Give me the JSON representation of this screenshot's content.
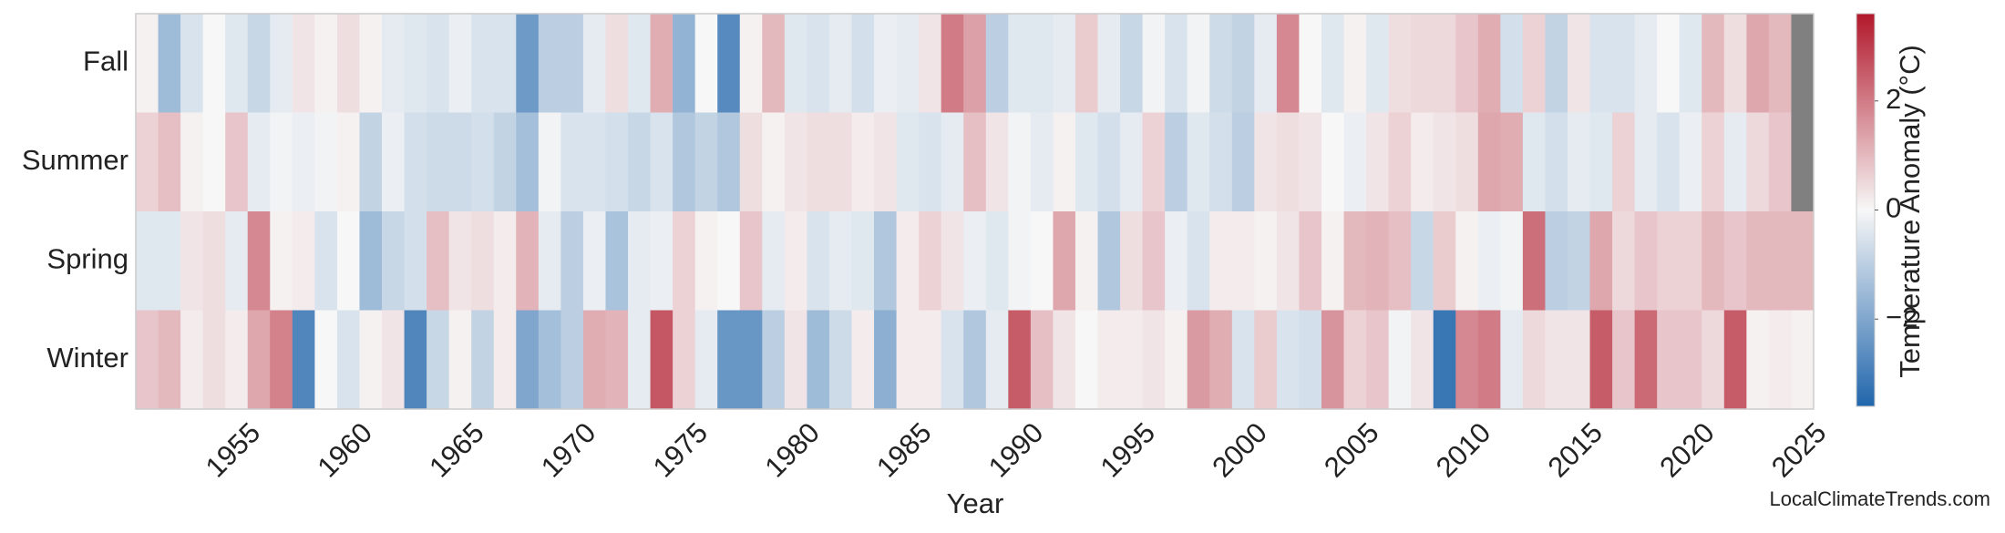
{
  "chart_data": {
    "type": "heatmap",
    "xlabel": "Year",
    "colorbar_label": "Temperature Anomaly (°C)",
    "watermark": "LocalClimateTrends.com",
    "x": [
      1951,
      1952,
      1953,
      1954,
      1955,
      1956,
      1957,
      1958,
      1959,
      1960,
      1961,
      1962,
      1963,
      1964,
      1965,
      1966,
      1967,
      1968,
      1969,
      1970,
      1971,
      1972,
      1973,
      1974,
      1975,
      1976,
      1977,
      1978,
      1979,
      1980,
      1981,
      1982,
      1983,
      1984,
      1985,
      1986,
      1987,
      1988,
      1989,
      1990,
      1991,
      1992,
      1993,
      1994,
      1995,
      1996,
      1997,
      1998,
      1999,
      2000,
      2001,
      2002,
      2003,
      2004,
      2005,
      2006,
      2007,
      2008,
      2009,
      2010,
      2011,
      2012,
      2013,
      2014,
      2015,
      2016,
      2017,
      2018,
      2019,
      2020,
      2021,
      2022,
      2023,
      2024,
      2025
    ],
    "xlim": [
      1950.5,
      2025.5
    ],
    "xticks": [
      1955,
      1960,
      1965,
      1970,
      1975,
      1980,
      1985,
      1990,
      1995,
      2000,
      2005,
      2010,
      2015,
      2020,
      2025
    ],
    "clim": [
      -3.6,
      3.6
    ],
    "cticks": [
      {
        "value": -2,
        "label": "−2"
      },
      0,
      2
    ],
    "cmap": [
      "#2166ac",
      "#f7f7f7",
      "#b2182b"
    ],
    "nan_color": "#808080",
    "series": [
      {
        "name": "Fall",
        "values": [
          0.1,
          -1.5,
          -0.5,
          0,
          -0.4,
          -0.8,
          -0.3,
          0.3,
          0.1,
          0.4,
          0.1,
          -0.3,
          -0.4,
          -0.5,
          -0.2,
          -0.5,
          -0.5,
          -2.3,
          -1.0,
          -1.0,
          -0.3,
          0.4,
          -0.4,
          1.2,
          -1.7,
          0,
          -2.7,
          0.1,
          1.0,
          -0.4,
          -0.5,
          -0.3,
          -0.6,
          -0.2,
          -0.3,
          0.3,
          2.0,
          1.4,
          -1.0,
          -0.4,
          -0.4,
          -0.3,
          0.7,
          -0.3,
          -0.8,
          -0.1,
          -0.5,
          -0.1,
          -0.7,
          -0.9,
          -0.3,
          1.8,
          0,
          -0.4,
          0.1,
          -0.4,
          0.4,
          0.5,
          0.5,
          0.8,
          1.2,
          -0.6,
          0.6,
          -0.9,
          0.3,
          -0.5,
          -0.5,
          -0.3,
          0,
          -0.4,
          1.0,
          0.4,
          1.3,
          1.0,
          null
        ]
      },
      {
        "name": "Summer",
        "values": [
          0.6,
          0.9,
          0.1,
          0,
          0.8,
          -0.3,
          -0.1,
          -0.2,
          -0.1,
          0.1,
          -0.9,
          -0.2,
          -0.6,
          -0.7,
          -0.7,
          -0.6,
          -0.9,
          -1.4,
          -0.1,
          -0.5,
          -0.5,
          -0.6,
          -0.8,
          -0.5,
          -1.2,
          -0.9,
          -1.2,
          0.4,
          0.1,
          0.3,
          0.4,
          0.4,
          0.2,
          0.3,
          -0.4,
          -0.5,
          -0.3,
          0.9,
          0.3,
          -0.1,
          -0.3,
          0.1,
          -0.4,
          -0.6,
          -0.3,
          0.6,
          -1.0,
          -0.4,
          -0.6,
          -1.0,
          0.3,
          0.4,
          0.3,
          0,
          -0.2,
          0.3,
          0.6,
          0.2,
          0.3,
          0.4,
          1.3,
          1.2,
          -0.4,
          -0.6,
          -0.3,
          -0.4,
          0.6,
          -0.3,
          -0.5,
          -0.2,
          0.6,
          -0.3,
          0.5,
          0.8,
          null
        ]
      },
      {
        "name": "Spring",
        "values": [
          -0.4,
          -0.4,
          0.3,
          0.4,
          -0.3,
          1.8,
          0.1,
          0.2,
          -0.5,
          0,
          -1.5,
          -0.8,
          -0.6,
          0.9,
          0.3,
          0.4,
          0.2,
          1.1,
          -0.3,
          -1.0,
          -0.2,
          -1.3,
          -0.3,
          -0.2,
          0.6,
          0.1,
          0,
          0.8,
          -0.3,
          0.2,
          -0.5,
          -0.3,
          -0.4,
          -1.2,
          0.2,
          0.6,
          0.3,
          -0.2,
          -0.4,
          -0.1,
          0,
          1.3,
          0.1,
          -1.2,
          0.4,
          0.8,
          -0.2,
          -0.5,
          0.2,
          0.2,
          0.1,
          0.3,
          0.8,
          0.1,
          1.0,
          1.1,
          0.9,
          -0.8,
          0.7,
          0.1,
          -0.2,
          -0.1,
          2.2,
          -1.0,
          -0.9,
          1.3,
          0.5,
          0.8,
          0.6,
          0.6,
          1.0,
          0.8,
          1.0,
          1.0,
          1.0
        ]
      },
      {
        "name": "Winter",
        "values": [
          0.8,
          1.0,
          0.2,
          0.4,
          0.2,
          1.3,
          1.9,
          -2.8,
          0,
          -0.5,
          0.1,
          0.3,
          -2.8,
          -0.8,
          0.1,
          -0.9,
          0.2,
          -2.0,
          -1.4,
          -1.0,
          1.2,
          1.1,
          -0.3,
          2.6,
          0.6,
          -0.3,
          -2.4,
          -2.4,
          -1.0,
          0.3,
          -1.5,
          -0.7,
          0.2,
          -1.8,
          0.2,
          0.2,
          -0.5,
          -1.2,
          -0.3,
          2.5,
          0.9,
          0.3,
          0,
          0.2,
          0.2,
          0.3,
          0.1,
          1.5,
          1.2,
          -0.5,
          0.7,
          -0.5,
          -0.6,
          1.6,
          0.6,
          0.8,
          -0.1,
          0.3,
          -3.2,
          1.8,
          2.0,
          -0.3,
          0.5,
          0.3,
          0.3,
          2.5,
          0.8,
          2.3,
          0.8,
          0.8,
          0.5,
          2.5,
          0.1,
          0.2,
          0.1
        ]
      }
    ]
  }
}
